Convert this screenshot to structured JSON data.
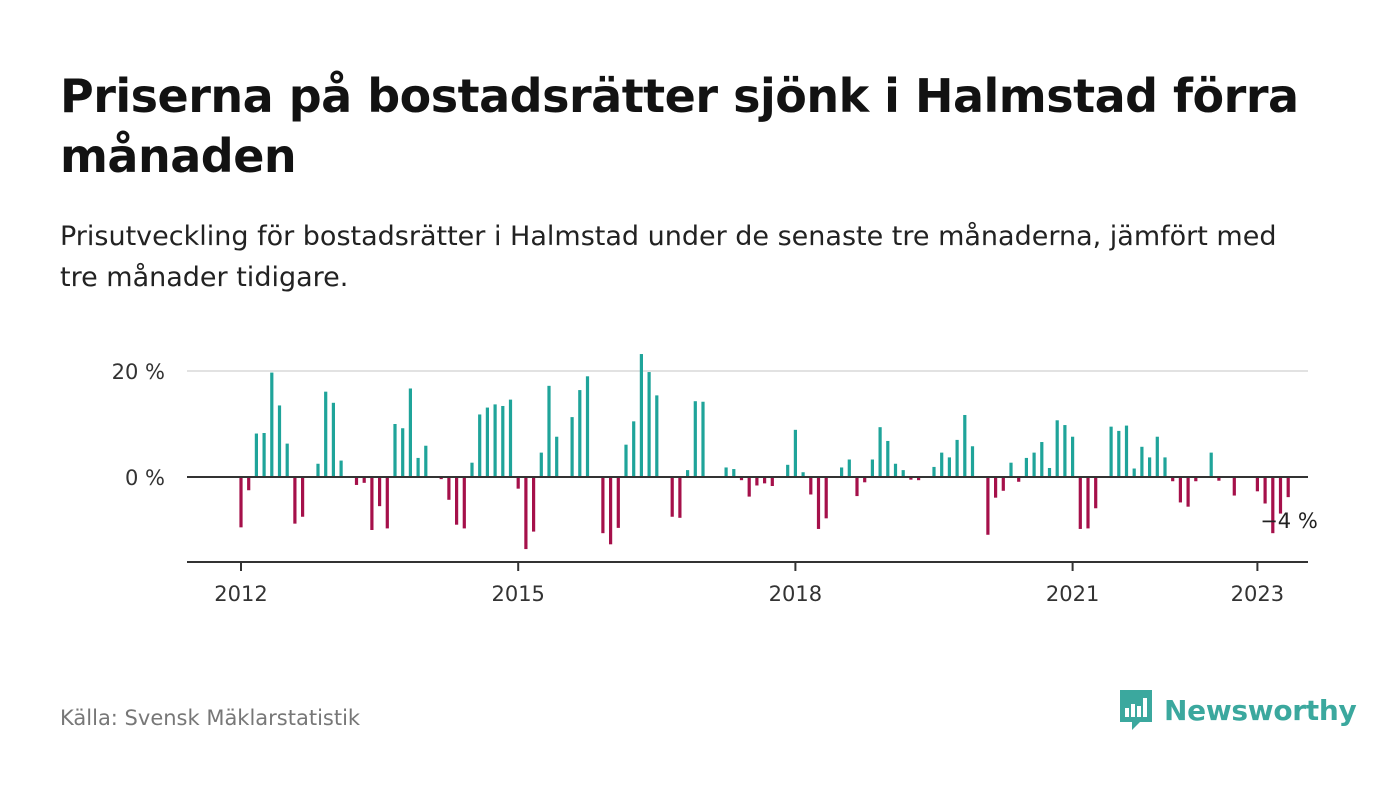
{
  "title": "Priserna på bostadsrätter sjönk i Halmstad förra månaden",
  "subtitle": "Prisutveckling för bostadsrätter i Halmstad under de senaste tre månaderna, jämfört med tre månader tidigare.",
  "source": "Källa: Svensk Mäklarstatistik",
  "brand": {
    "name": "Newsworthy",
    "color": "#3ba89e"
  },
  "colors": {
    "positive": "#1fa49a",
    "negative": "#a5104a",
    "baseline": "#333333",
    "grid": "#d9d9d9",
    "axis": "#333333"
  },
  "chart_data": {
    "type": "bar",
    "title": "",
    "xlabel": "",
    "ylabel": "",
    "ylim": [
      -16,
      24
    ],
    "yticks": [
      0,
      20
    ],
    "ytick_labels": [
      "0 %",
      "20 %"
    ],
    "xticks": [
      "2012",
      "2015",
      "2018",
      "2021",
      "2023"
    ],
    "last_value_label": "−4 %",
    "grid": true,
    "series": [
      {
        "start": "2012-01",
        "values": [
          -9.5,
          -2.5,
          8.2,
          8.3,
          19.7,
          13.5,
          6.3,
          -8.8,
          -7.5,
          0.0,
          2.5,
          16.1,
          14.0,
          3.1,
          0.0,
          -1.5,
          -1.1,
          -10.0,
          -5.5,
          -9.7,
          10.0,
          9.2,
          16.7,
          3.6,
          5.9,
          0.0,
          -0.4,
          -4.3,
          -9.0,
          -9.7,
          2.7,
          11.8,
          13.1,
          13.7,
          13.4,
          14.6,
          -2.2,
          -13.6,
          -10.3,
          4.6,
          17.2,
          7.6,
          0.0,
          11.3,
          16.4,
          19.0,
          0.0,
          -10.6,
          -12.7,
          -9.6,
          6.1,
          10.5,
          23.2,
          19.8,
          15.4,
          0.0,
          -7.5,
          -7.7,
          1.3,
          14.3,
          14.2,
          0.0,
          0.0,
          1.8,
          1.5,
          -0.6,
          -3.7,
          -1.6,
          -1.2,
          -1.7,
          0.0,
          2.3,
          8.9,
          0.9,
          -3.3,
          -9.8,
          -7.8,
          0.0,
          1.8,
          3.3,
          -3.6,
          -1.0,
          3.3,
          9.4,
          6.8,
          2.5,
          1.3,
          -0.5,
          -0.6,
          0.0,
          1.9,
          4.6,
          3.7,
          7.0,
          11.7,
          5.8,
          0.0,
          -10.9,
          -3.9,
          -2.6,
          2.7,
          -0.9,
          3.6,
          4.6,
          6.6,
          1.7,
          10.7,
          9.8,
          7.6,
          -9.8,
          -9.7,
          -5.9,
          0.0,
          9.5,
          8.7,
          9.7,
          1.6,
          5.7,
          3.7,
          7.6,
          3.7,
          -0.8,
          -4.8,
          -5.6,
          -0.8,
          0.0,
          4.6,
          -0.7,
          0.0,
          -3.5,
          0.0,
          0.0,
          -2.7,
          -5.0,
          -10.6,
          -6.9,
          -3.8
        ]
      }
    ]
  }
}
